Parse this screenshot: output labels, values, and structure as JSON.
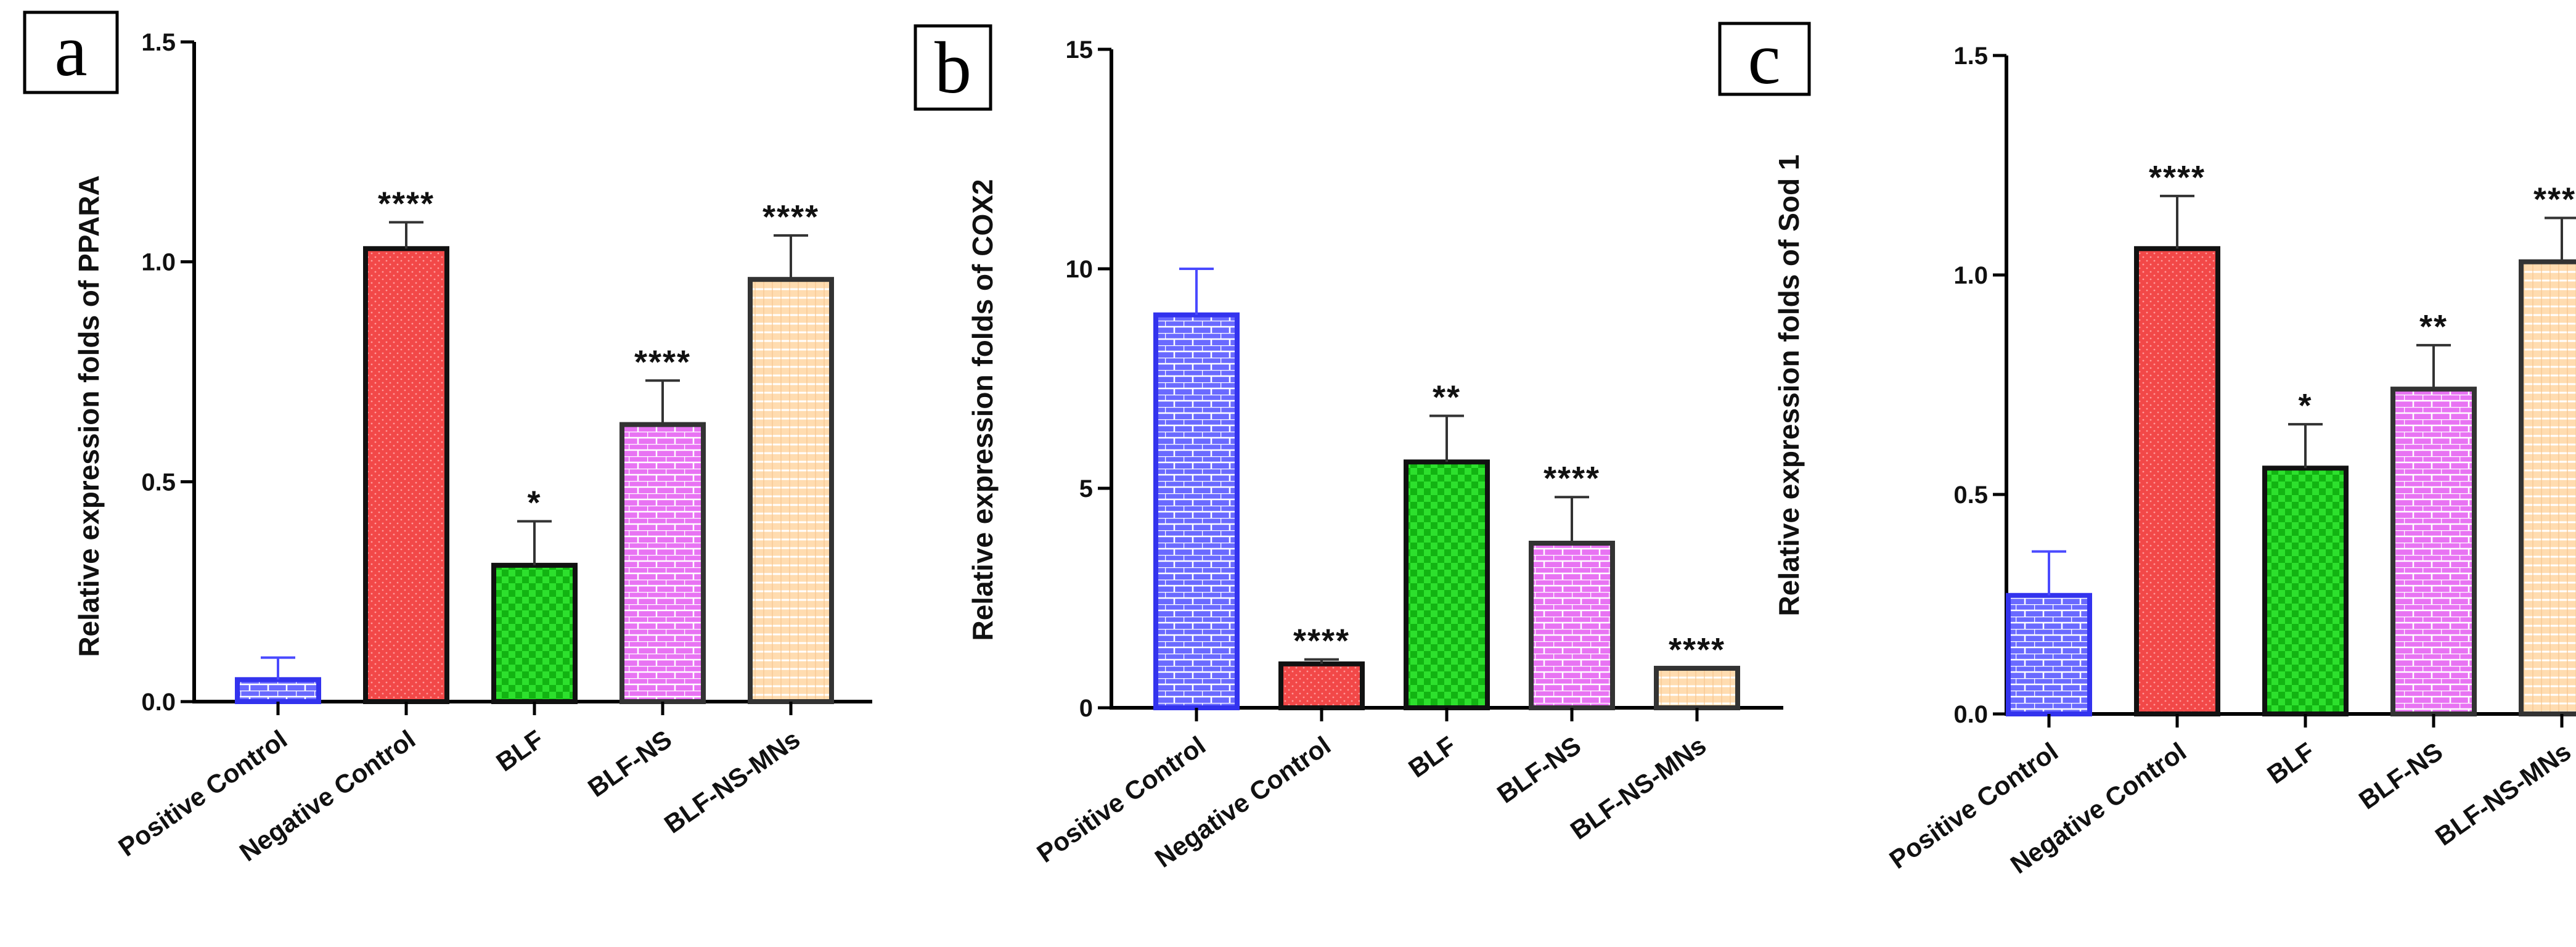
{
  "chart_data": [
    {
      "type": "bar",
      "panel": "a",
      "ylabel": "Relative expression folds of PPARA",
      "xlabel": "",
      "ylim": [
        0,
        1.5
      ],
      "ytick_values": [
        0,
        0.5,
        1.0,
        1.5
      ],
      "ytick_labels": [
        "0.0",
        "0.5",
        "1.0",
        "1.5"
      ],
      "categories": [
        "Positive Control",
        "Negative Control",
        "BLF",
        "BLF-NS",
        "BLF-NS-MNs"
      ],
      "values": [
        0.05,
        1.03,
        0.31,
        0.63,
        0.96
      ],
      "errors": [
        0.05,
        0.06,
        0.1,
        0.1,
        0.1
      ],
      "significance": [
        "",
        "****",
        "*",
        "****",
        "****"
      ]
    },
    {
      "type": "bar",
      "panel": "b",
      "ylabel": "Relative expression folds of COX2",
      "xlabel": "",
      "ylim": [
        0,
        15
      ],
      "ytick_values": [
        0,
        5,
        10,
        15
      ],
      "ytick_labels": [
        "0",
        "5",
        "10",
        "15"
      ],
      "categories": [
        "Positive Control",
        "Negative Control",
        "BLF",
        "BLF-NS",
        "BLF-NS-MNs"
      ],
      "values": [
        8.95,
        1.0,
        5.6,
        3.75,
        0.9
      ],
      "errors": [
        1.05,
        0.1,
        1.05,
        1.05,
        0.0
      ],
      "significance": [
        "",
        "****",
        "**",
        "****",
        "****"
      ]
    },
    {
      "type": "bar",
      "panel": "c",
      "ylabel": "Relative expression folds of Sod 1",
      "xlabel": "",
      "ylim": [
        0,
        1.5
      ],
      "ytick_values": [
        0,
        0.5,
        1.0,
        1.5
      ],
      "ytick_labels": [
        "0.0",
        "0.5",
        "1.0",
        "1.5"
      ],
      "categories": [
        "Positive Control",
        "Negative Control",
        "BLF",
        "BLF-NS",
        "BLF-NS-MNs"
      ],
      "values": [
        0.27,
        1.06,
        0.56,
        0.74,
        1.03
      ],
      "errors": [
        0.1,
        0.12,
        0.1,
        0.1,
        0.1
      ],
      "significance": [
        "",
        "****",
        "*",
        "**",
        "****"
      ]
    }
  ],
  "bar_styles": [
    {
      "fill": "#6a6aff",
      "stroke": "#3333ee",
      "pattern": "brick"
    },
    {
      "fill": "#f24848",
      "stroke": "#111111",
      "pattern": "dots"
    },
    {
      "fill": "#2de02d",
      "stroke": "#111111",
      "pattern": "checker"
    },
    {
      "fill": "#e873f3",
      "stroke": "#333333",
      "pattern": "brick"
    },
    {
      "fill": "#ffdcb0",
      "stroke": "#333333",
      "pattern": "lines"
    }
  ]
}
